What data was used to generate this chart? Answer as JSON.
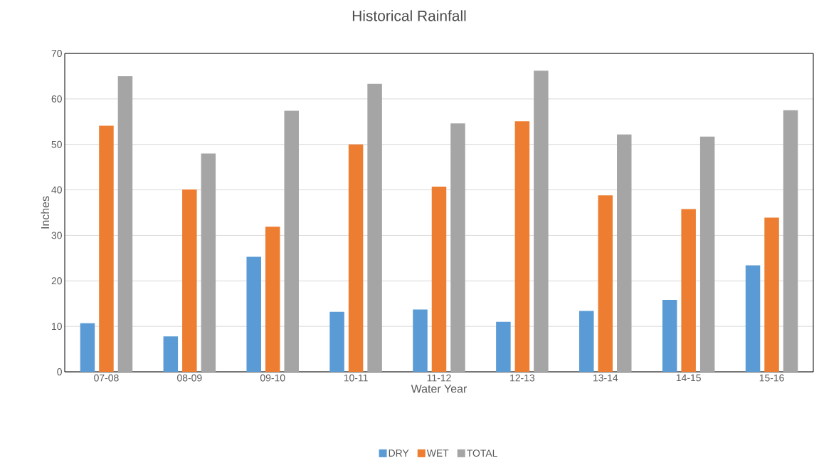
{
  "chart_data": {
    "type": "bar",
    "title": "Historical Rainfall",
    "xlabel": "Water Year",
    "ylabel": "Inches",
    "categories": [
      "07-08",
      "08-09",
      "09-10",
      "10-11",
      "11-12",
      "12-13",
      "13-14",
      "14-15",
      "15-16"
    ],
    "series": [
      {
        "name": "DRY",
        "color": "#5b9bd5",
        "values": [
          10.7,
          7.8,
          25.3,
          13.2,
          13.7,
          11.0,
          13.4,
          15.8,
          23.4
        ]
      },
      {
        "name": "WET",
        "color": "#ed7d31",
        "values": [
          54.1,
          40.1,
          31.9,
          50.0,
          40.7,
          55.1,
          38.8,
          35.8,
          33.9
        ]
      },
      {
        "name": "TOTAL",
        "color": "#a5a5a5",
        "values": [
          65.0,
          48.0,
          57.4,
          63.3,
          54.6,
          66.2,
          52.2,
          51.7,
          57.5
        ]
      }
    ],
    "ylim": [
      0,
      70
    ],
    "yticks": [
      0,
      10,
      20,
      30,
      40,
      50,
      60,
      70
    ],
    "grid": "y",
    "legend": "bottom"
  }
}
